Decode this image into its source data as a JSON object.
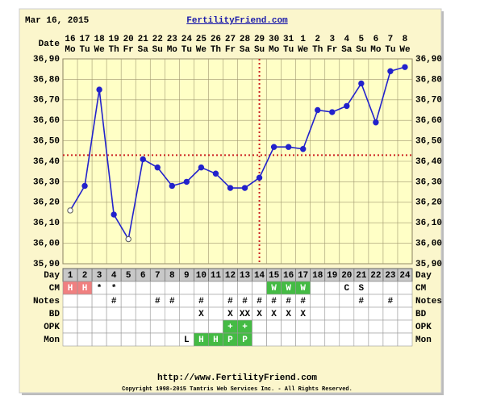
{
  "chart_data": {
    "type": "line",
    "header_date": "Mar 16, 2015",
    "site_title": "FertilityFriend.com",
    "date_label": "Date",
    "dates": [
      "16",
      "17",
      "18",
      "19",
      "20",
      "21",
      "22",
      "23",
      "24",
      "25",
      "26",
      "27",
      "28",
      "29",
      "30",
      "31",
      "1",
      "2",
      "3",
      "4",
      "5",
      "6",
      "7",
      "8"
    ],
    "weekdays": [
      "Mo",
      "Tu",
      "We",
      "Th",
      "Fr",
      "Sa",
      "Su",
      "Mo",
      "Tu",
      "We",
      "Th",
      "Fr",
      "Sa",
      "Su",
      "Mo",
      "Tu",
      "We",
      "Th",
      "Fr",
      "Sa",
      "Su",
      "Mo",
      "Tu",
      "We"
    ],
    "day_label": "Day",
    "x": [
      1,
      2,
      3,
      4,
      5,
      6,
      7,
      8,
      9,
      10,
      11,
      12,
      13,
      14,
      15,
      16,
      17,
      18,
      19,
      20,
      21,
      22,
      23,
      24
    ],
    "xlim": [
      0.5,
      24.5
    ],
    "series": [
      {
        "name": "Temperature",
        "color": "#2222cc",
        "values": [
          36.16,
          36.28,
          36.75,
          36.14,
          36.02,
          36.41,
          36.37,
          36.28,
          36.3,
          36.37,
          36.34,
          36.27,
          36.27,
          36.32,
          36.47,
          36.47,
          36.46,
          36.65,
          36.64,
          36.67,
          36.78,
          36.59,
          36.84,
          36.86
        ],
        "markers": [
          "open",
          "filled",
          "filled",
          "filled",
          "open",
          "filled",
          "filled",
          "filled",
          "filled",
          "filled",
          "filled",
          "filled",
          "filled",
          "filled",
          "filled",
          "filled",
          "filled",
          "filled",
          "filled",
          "filled",
          "filled",
          "filled",
          "filled",
          "filled"
        ]
      }
    ],
    "ylim": [
      35.9,
      36.9
    ],
    "yticks": [
      {
        "value": 35.9,
        "label": "35,90"
      },
      {
        "value": 36.0,
        "label": "36,00"
      },
      {
        "value": 36.1,
        "label": "36,10"
      },
      {
        "value": 36.2,
        "label": "36,20"
      },
      {
        "value": 36.3,
        "label": "36,30"
      },
      {
        "value": 36.4,
        "label": "36,40"
      },
      {
        "value": 36.5,
        "label": "36,50"
      },
      {
        "value": 36.6,
        "label": "36,60"
      },
      {
        "value": 36.7,
        "label": "36,70"
      },
      {
        "value": 36.8,
        "label": "36,80"
      },
      {
        "value": 36.9,
        "label": "36,90"
      }
    ],
    "grid": true,
    "coverline": 36.43,
    "ovulation_day": 14,
    "reference_color": "#cc2222",
    "rows": [
      {
        "label": "CM",
        "cells": [
          "H",
          "H",
          "*",
          "*",
          null,
          null,
          null,
          null,
          null,
          null,
          null,
          null,
          null,
          null,
          "W",
          "W",
          "W",
          null,
          null,
          "C",
          "S",
          null,
          null,
          null
        ],
        "cell_colors": [
          "#f08080",
          "#f08080",
          null,
          null,
          null,
          null,
          null,
          null,
          null,
          null,
          null,
          null,
          null,
          null,
          "#44bb44",
          "#44bb44",
          "#44bb44",
          null,
          null,
          null,
          null,
          null,
          null,
          null
        ]
      },
      {
        "label": "Notes",
        "cells": [
          null,
          null,
          null,
          "#",
          null,
          null,
          "#",
          "#",
          null,
          "#",
          null,
          "#",
          "#",
          "#",
          "#",
          "#",
          "#",
          null,
          null,
          null,
          "#",
          null,
          "#",
          null
        ],
        "cell_colors": [
          null,
          null,
          null,
          null,
          null,
          null,
          null,
          null,
          null,
          null,
          null,
          null,
          null,
          null,
          null,
          null,
          null,
          null,
          null,
          null,
          null,
          null,
          null,
          null
        ]
      },
      {
        "label": "BD",
        "cells": [
          null,
          null,
          null,
          null,
          null,
          null,
          null,
          null,
          null,
          "X",
          null,
          "X",
          "XX",
          "X",
          "X",
          "X",
          "X",
          null,
          null,
          null,
          null,
          null,
          null,
          null
        ],
        "cell_colors": [
          null,
          null,
          null,
          null,
          null,
          null,
          null,
          null,
          null,
          null,
          null,
          null,
          null,
          null,
          null,
          null,
          null,
          null,
          null,
          null,
          null,
          null,
          null,
          null
        ]
      },
      {
        "label": "OPK",
        "cells": [
          null,
          null,
          null,
          null,
          null,
          null,
          null,
          null,
          null,
          null,
          null,
          "+",
          "+",
          null,
          null,
          null,
          null,
          null,
          null,
          null,
          null,
          null,
          null,
          null
        ],
        "cell_colors": [
          null,
          null,
          null,
          null,
          null,
          null,
          null,
          null,
          null,
          null,
          null,
          "#44bb44",
          "#44bb44",
          null,
          null,
          null,
          null,
          null,
          null,
          null,
          null,
          null,
          null,
          null
        ]
      },
      {
        "label": "Mon",
        "cells": [
          null,
          null,
          null,
          null,
          null,
          null,
          null,
          null,
          "L",
          "H",
          "H",
          "P",
          "P",
          null,
          null,
          null,
          null,
          null,
          null,
          null,
          null,
          null,
          null,
          null
        ],
        "cell_colors": [
          null,
          null,
          null,
          null,
          null,
          null,
          null,
          null,
          null,
          "#44bb44",
          "#44bb44",
          "#44bb44",
          "#44bb44",
          null,
          null,
          null,
          null,
          null,
          null,
          null,
          null,
          null,
          null,
          null
        ]
      }
    ],
    "footer_url": "http://www.FertilityFriend.com",
    "copyright": "Copyright 1998-2015 Tamtris Web Services Inc. - All Rights Reserved."
  }
}
